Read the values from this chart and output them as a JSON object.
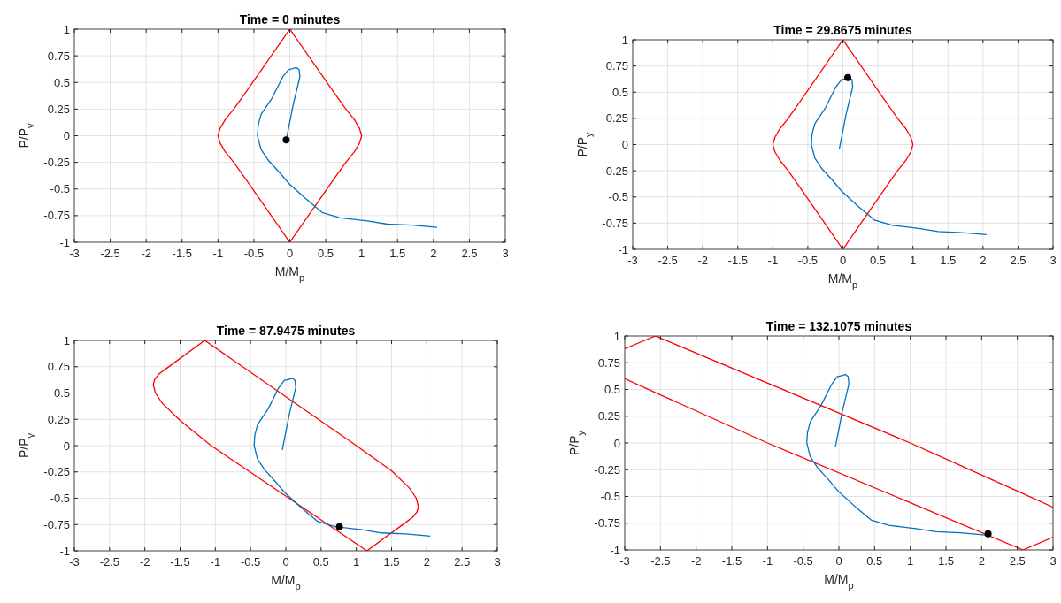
{
  "chart_data": [
    {
      "type": "line",
      "title": "Time = 0 minutes",
      "xlabel": "M/M$_{p}$",
      "ylabel": "P/P$_{y}$",
      "xlim": [
        -3,
        3
      ],
      "ylim": [
        -1,
        1
      ],
      "xticks": [
        -3,
        -2.5,
        -2,
        -1.5,
        -1,
        -0.5,
        0,
        0.5,
        1,
        1.5,
        2,
        2.5,
        3
      ],
      "yticks": [
        -1,
        -0.75,
        -0.5,
        -0.25,
        0,
        0.25,
        0.5,
        0.75,
        1
      ],
      "grid": true,
      "series": [
        {
          "color": "#ff0000",
          "x": [
            0,
            -0.6,
            -0.78,
            -0.9,
            -0.97,
            -1,
            -0.97,
            -0.9,
            -0.78,
            -0.6,
            0,
            null,
            0,
            0.6,
            0.78,
            0.9,
            0.97,
            1,
            0.97,
            0.9,
            0.78,
            0.6,
            0
          ],
          "values": [
            1,
            0.42,
            0.25,
            0.15,
            0.07,
            0,
            -0.07,
            -0.15,
            -0.25,
            -0.42,
            -1,
            null,
            -1,
            -0.42,
            -0.25,
            -0.15,
            -0.07,
            0,
            0.07,
            0.15,
            0.25,
            0.42,
            1
          ]
        },
        {
          "color": "#0072bd",
          "x": [
            -0.05,
            0.05,
            0.14,
            0.13,
            0.09,
            0.04,
            -0.02,
            -0.1,
            -0.25,
            -0.4,
            -0.44,
            -0.45,
            -0.4,
            -0.3,
            -0.15,
            -0.01,
            0.22,
            0.45,
            0.7,
            1.08,
            1.36,
            1.7,
            2.05
          ],
          "values": [
            -0.04,
            0.3,
            0.55,
            0.62,
            0.64,
            0.63,
            0.62,
            0.55,
            0.35,
            0.2,
            0.1,
            0,
            -0.13,
            -0.23,
            -0.34,
            -0.45,
            -0.59,
            -0.72,
            -0.77,
            -0.8,
            -0.83,
            -0.84,
            -0.86
          ]
        },
        {
          "type": "scatter",
          "color": "#000000",
          "x": [
            -0.05
          ],
          "values": [
            -0.04
          ]
        }
      ]
    },
    {
      "type": "line",
      "title": "Time = 29.8675 minutes",
      "xlabel": "M/M$_{p}$",
      "ylabel": "P/P$_{y}$",
      "xlim": [
        -3,
        3
      ],
      "ylim": [
        -1,
        1
      ],
      "xticks": [
        -3,
        -2.5,
        -2,
        -1.5,
        -1,
        -0.5,
        0,
        0.5,
        1,
        1.5,
        2,
        2.5,
        3
      ],
      "yticks": [
        -1,
        -0.75,
        -0.5,
        -0.25,
        0,
        0.25,
        0.5,
        0.75,
        1
      ],
      "grid": true,
      "series": [
        {
          "color": "#ff0000",
          "x": [
            0,
            -0.6,
            -0.78,
            -0.9,
            -0.97,
            -1,
            -0.97,
            -0.9,
            -0.78,
            -0.6,
            0,
            null,
            0,
            0.6,
            0.78,
            0.9,
            0.97,
            1,
            0.97,
            0.9,
            0.78,
            0.6,
            0
          ],
          "values": [
            1,
            0.42,
            0.25,
            0.15,
            0.07,
            0,
            -0.07,
            -0.15,
            -0.25,
            -0.42,
            -1,
            null,
            -1,
            -0.42,
            -0.25,
            -0.15,
            -0.07,
            0,
            0.07,
            0.15,
            0.25,
            0.42,
            1
          ]
        },
        {
          "color": "#0072bd",
          "x": [
            -0.05,
            0.05,
            0.14,
            0.13,
            0.09,
            0.04,
            -0.02,
            -0.1,
            -0.25,
            -0.4,
            -0.44,
            -0.45,
            -0.4,
            -0.3,
            -0.15,
            -0.01,
            0.22,
            0.45,
            0.7,
            1.08,
            1.36,
            1.7,
            2.05
          ],
          "values": [
            -0.04,
            0.3,
            0.55,
            0.62,
            0.64,
            0.63,
            0.62,
            0.55,
            0.35,
            0.2,
            0.1,
            0,
            -0.13,
            -0.23,
            -0.34,
            -0.45,
            -0.59,
            -0.72,
            -0.77,
            -0.8,
            -0.83,
            -0.84,
            -0.86
          ]
        },
        {
          "type": "scatter",
          "color": "#000000",
          "x": [
            0.07
          ],
          "values": [
            0.64
          ]
        }
      ]
    },
    {
      "type": "line",
      "title": "Time = 87.9475 minutes",
      "xlabel": "M/M$_{p}$",
      "ylabel": "P/P$_{y}$",
      "xlim": [
        -3,
        3
      ],
      "ylim": [
        -1,
        1
      ],
      "xticks": [
        -3,
        -2.5,
        -2,
        -1.5,
        -1,
        -0.5,
        0,
        0.5,
        1,
        1.5,
        2,
        2.5,
        3
      ],
      "yticks": [
        -1,
        -0.75,
        -0.5,
        -0.25,
        0,
        0.25,
        0.5,
        0.75,
        1
      ],
      "grid": true,
      "series": [
        {
          "color": "#ff0000",
          "x": [
            -1.15,
            -1.7,
            -1.8,
            -1.86,
            -1.88,
            -1.85,
            -1.75,
            -1.5,
            -1.06,
            1.15,
            null,
            1.15,
            1.7,
            1.8,
            1.86,
            1.88,
            1.85,
            1.75,
            1.5,
            1,
            -1.15
          ],
          "values": [
            1,
            0.73,
            0.68,
            0.63,
            0.58,
            0.5,
            0.4,
            0.24,
            0,
            -1,
            null,
            -1,
            -0.73,
            -0.68,
            -0.63,
            -0.58,
            -0.5,
            -0.4,
            -0.24,
            0,
            1
          ]
        },
        {
          "color": "#0072bd",
          "x": [
            -0.05,
            0.05,
            0.14,
            0.13,
            0.09,
            0.04,
            -0.02,
            -0.1,
            -0.25,
            -0.4,
            -0.44,
            -0.45,
            -0.4,
            -0.3,
            -0.15,
            -0.01,
            0.22,
            0.45,
            0.7,
            1.08,
            1.36,
            1.7,
            2.05
          ],
          "values": [
            -0.04,
            0.3,
            0.55,
            0.62,
            0.64,
            0.63,
            0.62,
            0.55,
            0.35,
            0.2,
            0.1,
            0,
            -0.13,
            -0.23,
            -0.34,
            -0.45,
            -0.59,
            -0.72,
            -0.77,
            -0.8,
            -0.83,
            -0.84,
            -0.86
          ]
        },
        {
          "type": "scatter",
          "color": "#000000",
          "x": [
            0.76
          ],
          "values": [
            -0.77
          ]
        }
      ]
    },
    {
      "type": "line",
      "title": "Time = 132.1075 minutes",
      "xlabel": "M/M$_{p}$",
      "ylabel": "P/P$_{y}$",
      "xlim": [
        -3,
        3
      ],
      "ylim": [
        -1,
        1
      ],
      "xticks": [
        -3,
        -2.5,
        -2,
        -1.5,
        -1,
        -0.5,
        0,
        0.5,
        1,
        1.5,
        2,
        2.5,
        3
      ],
      "yticks": [
        -1,
        -0.75,
        -0.5,
        -0.25,
        0,
        0.25,
        0.5,
        0.75,
        1
      ],
      "grid": true,
      "series": [
        {
          "color": "#ff0000",
          "x": [
            -3,
            -2.57,
            1,
            2.5,
            3
          ],
          "values": [
            0.88,
            1,
            0,
            -0.45,
            -0.6
          ]
        },
        {
          "color": "#ff0000",
          "x": [
            -3,
            -2.5,
            -1,
            2.58,
            3
          ],
          "values": [
            0.6,
            0.45,
            0,
            -1,
            -0.88
          ]
        },
        {
          "color": "#0072bd",
          "x": [
            -0.05,
            0.05,
            0.14,
            0.13,
            0.09,
            0.04,
            -0.02,
            -0.1,
            -0.25,
            -0.4,
            -0.44,
            -0.45,
            -0.4,
            -0.3,
            -0.15,
            -0.01,
            0.22,
            0.45,
            0.7,
            1.08,
            1.36,
            1.7,
            2.05
          ],
          "values": [
            -0.04,
            0.3,
            0.55,
            0.62,
            0.64,
            0.63,
            0.62,
            0.55,
            0.35,
            0.2,
            0.1,
            0,
            -0.13,
            -0.23,
            -0.34,
            -0.45,
            -0.59,
            -0.72,
            -0.77,
            -0.8,
            -0.83,
            -0.84,
            -0.86
          ]
        },
        {
          "type": "scatter",
          "color": "#000000",
          "x": [
            2.09
          ],
          "values": [
            -0.85
          ]
        }
      ]
    }
  ]
}
